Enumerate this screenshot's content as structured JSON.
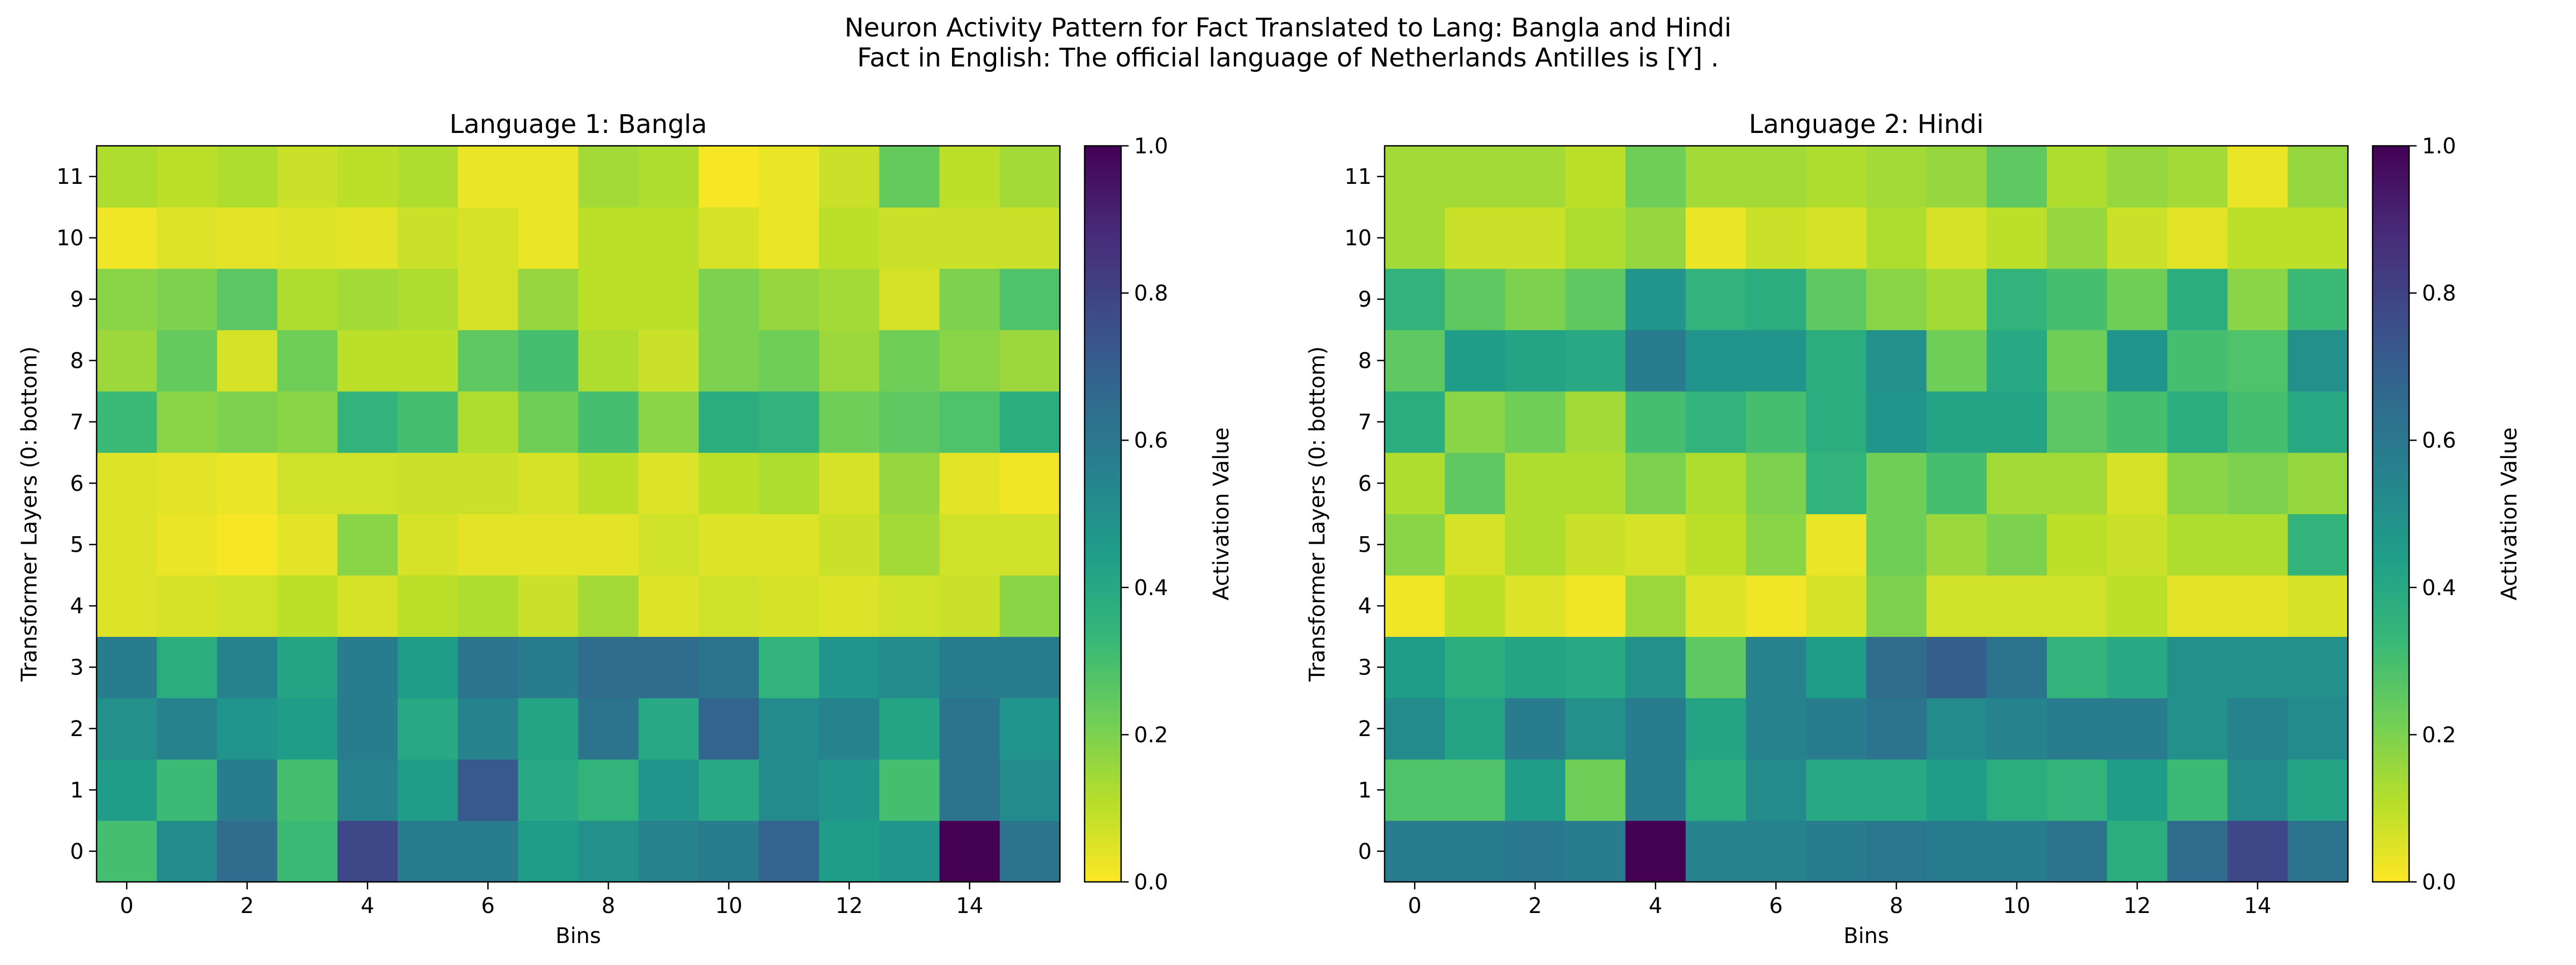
{
  "figure": {
    "title_line1": "Neuron Activity Pattern for Fact Translated to Lang: Bangla and Hindi",
    "title_line2": "Fact in English: The official language of Netherlands Antilles is [Y] ."
  },
  "colormap": [
    "#fde725",
    "#b5de2b",
    "#6ece58",
    "#35b779",
    "#1f9e89",
    "#26828e",
    "#31688e",
    "#3e4989",
    "#482878",
    "#440154"
  ],
  "chart_data": [
    {
      "type": "heatmap",
      "title": "Language 1: Bangla",
      "xlabel": "Bins",
      "ylabel": "Transformer Layers (0: bottom)",
      "colorbar_label": "Activation Value",
      "x_ticks": [
        "0",
        "2",
        "4",
        "6",
        "8",
        "10",
        "12",
        "14"
      ],
      "y_ticks": [
        "0",
        "1",
        "2",
        "3",
        "4",
        "5",
        "6",
        "7",
        "8",
        "9",
        "10",
        "11"
      ],
      "colorbar_ticks": [
        "0.0",
        "0.2",
        "0.4",
        "0.6",
        "0.8",
        "1.0"
      ],
      "vmin": 0.0,
      "vmax": 1.0,
      "n_bins": 16,
      "n_layers": 12,
      "values_by_layer_bottom_to_top": [
        [
          0.3,
          0.52,
          0.65,
          0.32,
          0.78,
          0.58,
          0.58,
          0.45,
          0.5,
          0.55,
          0.58,
          0.68,
          0.45,
          0.48,
          1.0,
          0.62
        ],
        [
          0.45,
          0.32,
          0.58,
          0.3,
          0.55,
          0.45,
          0.72,
          0.4,
          0.35,
          0.48,
          0.4,
          0.52,
          0.48,
          0.3,
          0.62,
          0.52
        ],
        [
          0.5,
          0.55,
          0.48,
          0.45,
          0.58,
          0.4,
          0.55,
          0.42,
          0.62,
          0.4,
          0.68,
          0.52,
          0.55,
          0.42,
          0.62,
          0.48
        ],
        [
          0.58,
          0.38,
          0.55,
          0.42,
          0.58,
          0.45,
          0.62,
          0.58,
          0.65,
          0.65,
          0.62,
          0.35,
          0.48,
          0.52,
          0.58,
          0.58
        ],
        [
          0.05,
          0.06,
          0.07,
          0.1,
          0.06,
          0.1,
          0.12,
          0.08,
          0.14,
          0.05,
          0.07,
          0.06,
          0.05,
          0.07,
          0.08,
          0.18
        ],
        [
          0.05,
          0.03,
          0.01,
          0.04,
          0.18,
          0.06,
          0.04,
          0.04,
          0.04,
          0.07,
          0.05,
          0.05,
          0.08,
          0.14,
          0.07,
          0.07
        ],
        [
          0.05,
          0.04,
          0.03,
          0.07,
          0.07,
          0.08,
          0.08,
          0.06,
          0.1,
          0.05,
          0.1,
          0.12,
          0.06,
          0.16,
          0.04,
          0.02
        ],
        [
          0.32,
          0.18,
          0.2,
          0.18,
          0.35,
          0.3,
          0.12,
          0.22,
          0.3,
          0.18,
          0.38,
          0.35,
          0.22,
          0.25,
          0.28,
          0.38
        ],
        [
          0.15,
          0.24,
          0.06,
          0.22,
          0.1,
          0.1,
          0.25,
          0.3,
          0.12,
          0.08,
          0.2,
          0.22,
          0.15,
          0.22,
          0.18,
          0.15
        ],
        [
          0.18,
          0.2,
          0.26,
          0.12,
          0.14,
          0.12,
          0.06,
          0.16,
          0.1,
          0.1,
          0.2,
          0.16,
          0.14,
          0.06,
          0.2,
          0.28
        ],
        [
          0.02,
          0.05,
          0.04,
          0.05,
          0.04,
          0.08,
          0.06,
          0.03,
          0.1,
          0.1,
          0.06,
          0.03,
          0.1,
          0.08,
          0.08,
          0.08
        ],
        [
          0.12,
          0.1,
          0.12,
          0.08,
          0.1,
          0.12,
          0.03,
          0.03,
          0.14,
          0.12,
          0.01,
          0.03,
          0.08,
          0.24,
          0.1,
          0.14
        ]
      ]
    },
    {
      "type": "heatmap",
      "title": "Language 2: Hindi",
      "xlabel": "Bins",
      "ylabel": "Transformer Layers (0: bottom)",
      "colorbar_label": "Activation Value",
      "x_ticks": [
        "0",
        "2",
        "4",
        "6",
        "8",
        "10",
        "12",
        "14"
      ],
      "y_ticks": [
        "0",
        "1",
        "2",
        "3",
        "4",
        "5",
        "6",
        "7",
        "8",
        "9",
        "10",
        "11"
      ],
      "colorbar_ticks": [
        "0.0",
        "0.2",
        "0.4",
        "0.6",
        "0.8",
        "1.0"
      ],
      "vmin": 0.0,
      "vmax": 1.0,
      "n_bins": 16,
      "n_layers": 12,
      "values_by_layer_bottom_to_top": [
        [
          0.58,
          0.58,
          0.6,
          0.58,
          1.0,
          0.55,
          0.55,
          0.58,
          0.6,
          0.58,
          0.58,
          0.62,
          0.38,
          0.65,
          0.78,
          0.62
        ],
        [
          0.28,
          0.28,
          0.45,
          0.22,
          0.58,
          0.38,
          0.52,
          0.4,
          0.4,
          0.45,
          0.38,
          0.35,
          0.45,
          0.32,
          0.52,
          0.42
        ],
        [
          0.52,
          0.42,
          0.58,
          0.5,
          0.58,
          0.42,
          0.55,
          0.58,
          0.62,
          0.52,
          0.55,
          0.58,
          0.58,
          0.5,
          0.55,
          0.52
        ],
        [
          0.45,
          0.38,
          0.42,
          0.4,
          0.5,
          0.25,
          0.55,
          0.45,
          0.65,
          0.7,
          0.62,
          0.35,
          0.4,
          0.5,
          0.5,
          0.5
        ],
        [
          0.02,
          0.1,
          0.05,
          0.02,
          0.15,
          0.05,
          0.02,
          0.06,
          0.2,
          0.07,
          0.07,
          0.07,
          0.1,
          0.04,
          0.04,
          0.06
        ],
        [
          0.18,
          0.06,
          0.12,
          0.08,
          0.06,
          0.1,
          0.18,
          0.03,
          0.22,
          0.15,
          0.2,
          0.1,
          0.08,
          0.12,
          0.12,
          0.35
        ],
        [
          0.12,
          0.25,
          0.12,
          0.12,
          0.2,
          0.12,
          0.2,
          0.35,
          0.22,
          0.3,
          0.14,
          0.14,
          0.06,
          0.18,
          0.2,
          0.16
        ],
        [
          0.38,
          0.18,
          0.22,
          0.14,
          0.3,
          0.35,
          0.3,
          0.38,
          0.48,
          0.42,
          0.42,
          0.26,
          0.3,
          0.38,
          0.3,
          0.4
        ],
        [
          0.25,
          0.45,
          0.42,
          0.4,
          0.58,
          0.48,
          0.48,
          0.38,
          0.5,
          0.22,
          0.4,
          0.22,
          0.48,
          0.3,
          0.28,
          0.5
        ],
        [
          0.35,
          0.25,
          0.2,
          0.25,
          0.48,
          0.35,
          0.38,
          0.25,
          0.18,
          0.14,
          0.35,
          0.3,
          0.22,
          0.38,
          0.18,
          0.32
        ],
        [
          0.14,
          0.08,
          0.08,
          0.12,
          0.16,
          0.03,
          0.08,
          0.06,
          0.12,
          0.06,
          0.1,
          0.16,
          0.08,
          0.04,
          0.1,
          0.1
        ],
        [
          0.14,
          0.14,
          0.14,
          0.1,
          0.22,
          0.14,
          0.14,
          0.12,
          0.14,
          0.16,
          0.25,
          0.12,
          0.16,
          0.14,
          0.03,
          0.16
        ]
      ]
    }
  ]
}
